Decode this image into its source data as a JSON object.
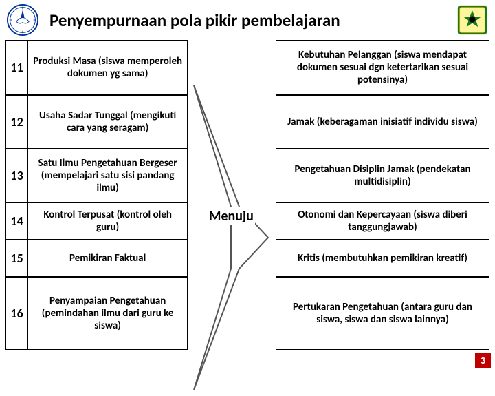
{
  "title": "Penyempurnaan pola pikir pembelajaran",
  "arrow_label": "Menuju",
  "page_number": "3",
  "colors": {
    "border": "#000000",
    "bg": "#ffffff",
    "page_badge_bg": "#c00000",
    "page_badge_fg": "#ffffff"
  },
  "rows": [
    {
      "num": "11",
      "left": "Produksi Masa (siswa memperoleh dokumen yg sama)",
      "right": "Kebutuhan Pelanggan (siswa mendapat dokumen sesuai dgn ketertarikan sesuai potensinya)"
    },
    {
      "num": "12",
      "left": "Usaha Sadar Tunggal (mengikuti cara yang seragam)",
      "right": "Jamak (keberagaman inisiatif individu siswa)"
    },
    {
      "num": "13",
      "left": "Satu Ilmu Pengetahuan Bergeser (mempelajari satu sisi pandang ilmu)",
      "right": "Pengetahuan Disiplin Jamak (pendekatan multidisiplin)"
    },
    {
      "num": "14",
      "left": "Kontrol Terpusat (kontrol oleh guru)",
      "right": "Otonomi dan Kepercayaan (siswa diberi tanggungjawab)"
    },
    {
      "num": "15",
      "left": "Pemikiran Faktual",
      "right": "Kritis (membutuhkan pemikiran kreatif)"
    },
    {
      "num": "16",
      "left": "Penyampaian Pengetahuan (pemindahan ilmu dari guru ke siswa)",
      "right": "Pertukaran Pengetahuan (antara guru dan siswa, siswa dan siswa lainnya)"
    }
  ]
}
